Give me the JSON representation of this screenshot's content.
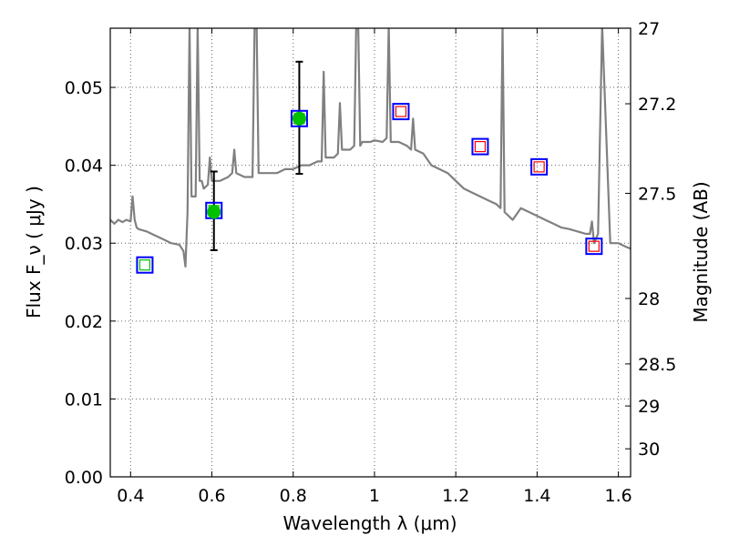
{
  "chart_data": {
    "type": "scatter",
    "xlabel": "Wavelength  λ (μm)",
    "ylabel": "Flux  F_ν  ( μJy )",
    "ylabel_right": "Magnitude (AB)",
    "xlim": [
      0.35,
      1.63
    ],
    "ylim": [
      0.0,
      0.0576
    ],
    "grid": true,
    "x_ticks": [
      0.4,
      0.6,
      0.8,
      1.0,
      1.2,
      1.4,
      1.6
    ],
    "x_tick_labels": [
      "0.4",
      "0.6",
      "0.8",
      "1",
      "1.2",
      "1.4",
      "1.6"
    ],
    "y_ticks": [
      0.0,
      0.01,
      0.02,
      0.03,
      0.04,
      0.05
    ],
    "y_tick_labels": [
      "0.00",
      "0.01",
      "0.02",
      "0.03",
      "0.04",
      "0.05"
    ],
    "right_ticks": [
      {
        "label": "27",
        "flux": 0.0576
      },
      {
        "label": "27.2",
        "flux": 0.0479
      },
      {
        "label": "27.5",
        "flux": 0.0364
      },
      {
        "label": "28",
        "flux": 0.0229
      },
      {
        "label": "28.5",
        "flux": 0.0145
      },
      {
        "label": "29",
        "flux": 0.0091
      },
      {
        "label": "30",
        "flux": 0.0036
      }
    ],
    "colors": {
      "model_sed": "#808080",
      "observed": "#00c000",
      "model_box": "#0000ff",
      "inner_green": "#00c000",
      "inner_red": "#ff0000",
      "error_bar": "#000000"
    },
    "series": [
      {
        "style": "line",
        "color": "#808080",
        "x": [
          0.35,
          0.36,
          0.37,
          0.38,
          0.39,
          0.4,
          0.405,
          0.41,
          0.415,
          0.42,
          0.44,
          0.46,
          0.48,
          0.5,
          0.52,
          0.53,
          0.535,
          0.54,
          0.545,
          0.55,
          0.56,
          0.565,
          0.57,
          0.575,
          0.58,
          0.59,
          0.595,
          0.6,
          0.62,
          0.64,
          0.65,
          0.655,
          0.66,
          0.68,
          0.7,
          0.705,
          0.71,
          0.715,
          0.72,
          0.74,
          0.76,
          0.78,
          0.8,
          0.82,
          0.84,
          0.86,
          0.87,
          0.875,
          0.88,
          0.9,
          0.91,
          0.915,
          0.92,
          0.94,
          0.95,
          0.955,
          0.96,
          0.965,
          0.97,
          0.99,
          1.0,
          1.02,
          1.03,
          1.035,
          1.04,
          1.06,
          1.08,
          1.09,
          1.095,
          1.1,
          1.12,
          1.14,
          1.16,
          1.18,
          1.2,
          1.22,
          1.24,
          1.26,
          1.28,
          1.3,
          1.31,
          1.315,
          1.32,
          1.34,
          1.36,
          1.38,
          1.4,
          1.42,
          1.44,
          1.46,
          1.48,
          1.5,
          1.52,
          1.53,
          1.535,
          1.54,
          1.55,
          1.56,
          1.58,
          1.6,
          1.62,
          1.63
        ],
        "y": [
          0.033,
          0.0325,
          0.033,
          0.0327,
          0.033,
          0.0328,
          0.036,
          0.033,
          0.032,
          0.0318,
          0.0315,
          0.031,
          0.0305,
          0.03,
          0.0298,
          0.029,
          0.027,
          0.034,
          0.058,
          0.036,
          0.036,
          0.058,
          0.038,
          0.038,
          0.037,
          0.0375,
          0.041,
          0.038,
          0.038,
          0.0385,
          0.039,
          0.042,
          0.039,
          0.0385,
          0.0385,
          0.058,
          0.058,
          0.039,
          0.039,
          0.039,
          0.039,
          0.0395,
          0.0395,
          0.04,
          0.04,
          0.0405,
          0.0405,
          0.052,
          0.041,
          0.041,
          0.0415,
          0.048,
          0.042,
          0.042,
          0.0425,
          0.058,
          0.058,
          0.0425,
          0.043,
          0.043,
          0.0432,
          0.043,
          0.0435,
          0.058,
          0.043,
          0.043,
          0.0425,
          0.042,
          0.046,
          0.042,
          0.0415,
          0.04,
          0.0395,
          0.039,
          0.038,
          0.037,
          0.0365,
          0.036,
          0.0355,
          0.035,
          0.0345,
          0.058,
          0.034,
          0.033,
          0.0345,
          0.034,
          0.0335,
          0.033,
          0.0325,
          0.032,
          0.0318,
          0.0315,
          0.0312,
          0.0312,
          0.0328,
          0.03,
          0.0312,
          0.058,
          0.03,
          0.03,
          0.0295,
          0.0293
        ]
      },
      {
        "style": "markers",
        "x": [
          0.435,
          0.605,
          0.815,
          1.065,
          1.26,
          1.405,
          1.54
        ],
        "y": [
          0.0272,
          0.0342,
          0.046,
          0.0469,
          0.0424,
          0.0398,
          0.0296
        ],
        "inner": [
          "green",
          "green",
          "green",
          "red",
          "red",
          "red",
          "red"
        ]
      },
      {
        "style": "points",
        "x": [
          0.605,
          0.815
        ],
        "y": [
          0.034,
          0.046
        ],
        "yerr_low": [
          0.0291,
          0.0389
        ],
        "yerr_high": [
          0.0392,
          0.0533
        ]
      }
    ]
  }
}
